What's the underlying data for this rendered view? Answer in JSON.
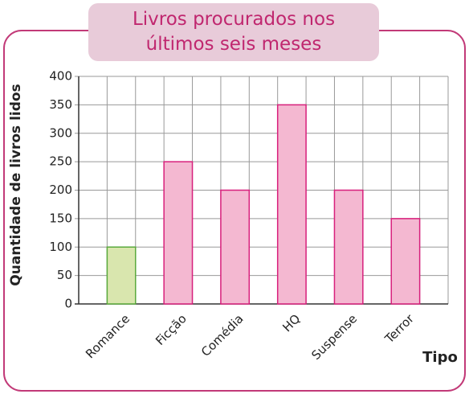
{
  "chart_data": {
    "type": "bar",
    "title": "Livros procurados nos últimos seis meses",
    "y_label": "Quantidade de livros lidos",
    "x_label": "Tipo",
    "categories": [
      "Romance",
      "Ficção",
      "Comédia",
      "HQ",
      "Suspense",
      "Terror"
    ],
    "values": [
      100,
      250,
      200,
      350,
      200,
      150
    ],
    "colors": [
      "#d9e6ae",
      "#f4b8d1",
      "#f4b8d1",
      "#f4b8d1",
      "#f4b8d1",
      "#f4b8d1"
    ],
    "edge_colors": [
      "#5aaa3c",
      "#d8207c",
      "#d8207c",
      "#d8207c",
      "#d8207c",
      "#d8207c"
    ],
    "ylim": [
      0,
      400
    ],
    "yticks": [
      0,
      50,
      100,
      150,
      200,
      250,
      300,
      350,
      400
    ],
    "grid": true
  }
}
